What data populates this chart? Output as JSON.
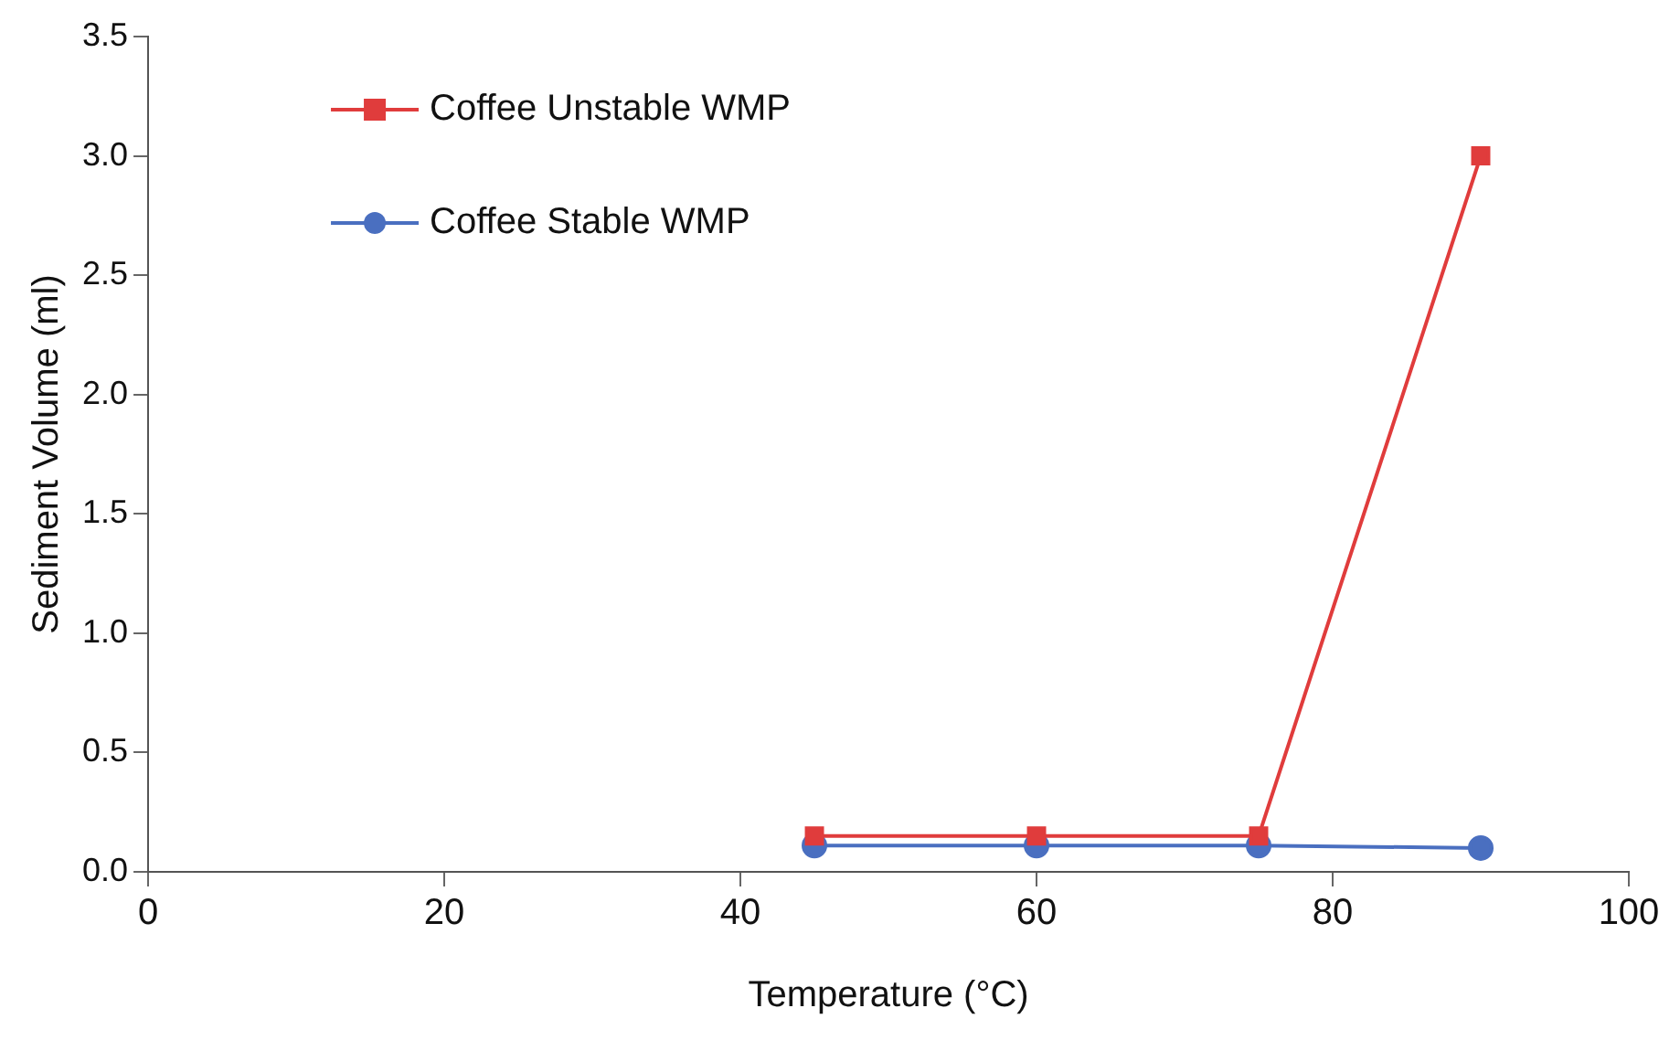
{
  "chart_data": {
    "type": "line",
    "xlabel": "Temperature (°C)",
    "ylabel": "Sediment Volume (ml)",
    "xlim": [
      0,
      100
    ],
    "xticks": [
      0,
      20,
      40,
      60,
      80,
      100
    ],
    "ylim": [
      0,
      3.5
    ],
    "yticks": [
      {
        "value": 0,
        "label": "0.0"
      },
      {
        "value": 0.5,
        "label": "0.5"
      },
      {
        "value": 1,
        "label": "1.0"
      },
      {
        "value": 1.5,
        "label": "1.5"
      },
      {
        "value": 2,
        "label": "2.0"
      },
      {
        "value": 2.5,
        "label": "2.5"
      },
      {
        "value": 3,
        "label": "3.0"
      },
      {
        "value": 3.5,
        "label": "3.5"
      }
    ],
    "x": [
      45,
      60,
      75,
      90
    ],
    "grid": false,
    "legend": "top left",
    "line_style": "solid",
    "series": [
      {
        "name": "Coffee Unstable WMP",
        "color": "#e03c3c",
        "marker": "square",
        "values": [
          0.15,
          0.15,
          0.15,
          3.0
        ]
      },
      {
        "name": "Coffee Stable WMP",
        "color": "#4a6fc0",
        "marker": "circle",
        "values": [
          0.11,
          0.11,
          0.11,
          0.1
        ]
      }
    ]
  }
}
